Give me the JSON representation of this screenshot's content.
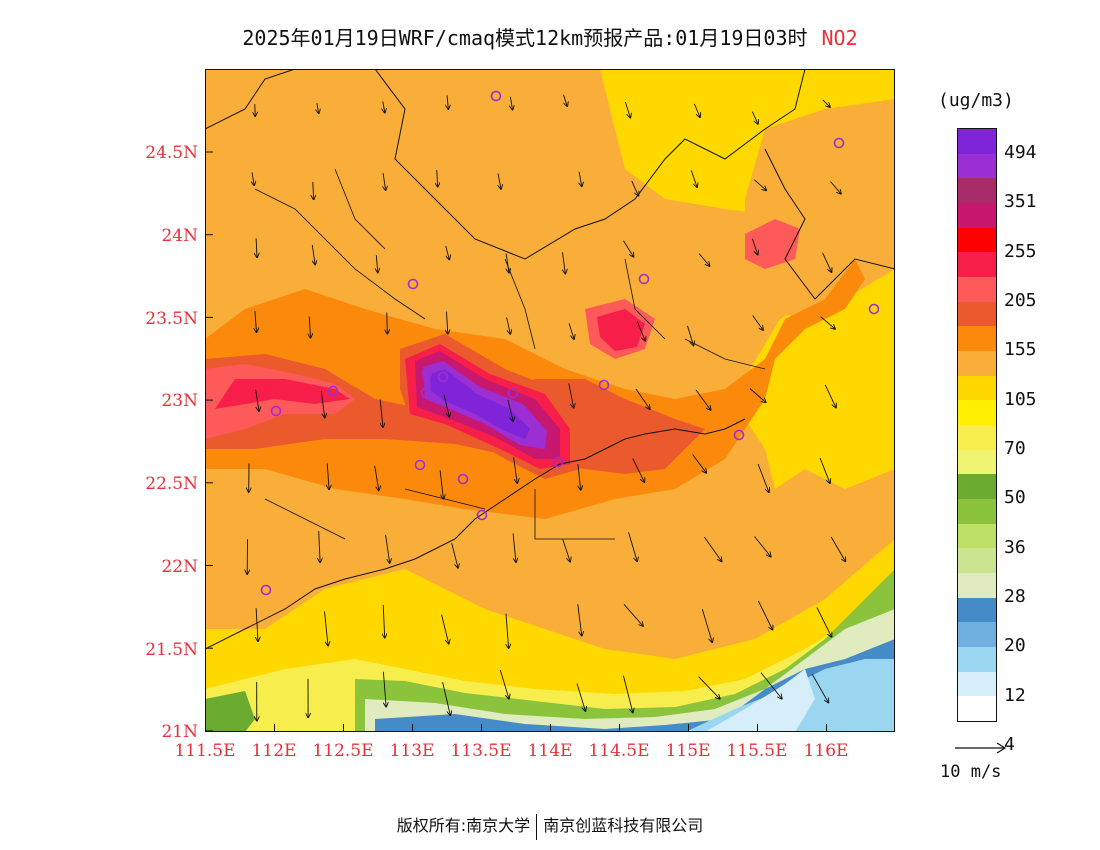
{
  "title": {
    "main": "2025年01月19日WRF/cmaq模式12km预报产品:01月19日03时",
    "species": "NO2"
  },
  "map": {
    "lat_labels": [
      "24.5N",
      "24N",
      "23.5N",
      "23N",
      "22.5N",
      "22N",
      "21.5N",
      "21N"
    ],
    "lon_labels": [
      "111.5E",
      "112E",
      "112.5E",
      "113E",
      "113.5E",
      "114E",
      "114.5E",
      "115E",
      "115.5E",
      "116E"
    ]
  },
  "colorbar": {
    "units": "(ug/m3)",
    "levels": [
      "494",
      "351",
      "255",
      "205",
      "155",
      "105",
      "70",
      "50",
      "36",
      "28",
      "20",
      "12",
      "4"
    ],
    "colors": [
      "#7f24d8",
      "#9b2fd3",
      "#a82c6a",
      "#c8176e",
      "#ff0000",
      "#f71e4a",
      "#ff5a5a",
      "#ea5a2c",
      "#fb8a0c",
      "#f8ae38",
      "#ffd800",
      "#ffef00",
      "#f7ee4e",
      "#eff570",
      "#6aab30",
      "#8bc43c",
      "#bde068",
      "#cae491",
      "#e0ecc0",
      "#448bc8",
      "#6fb0e0",
      "#9ad6f0",
      "#d6eefa",
      "#ffffff"
    ]
  },
  "wind_reference": {
    "label": "10 m/s"
  },
  "footer": {
    "copyright_prefix": "版权所有:南京大学",
    "company": "南京创蓝科技有限公司"
  }
}
